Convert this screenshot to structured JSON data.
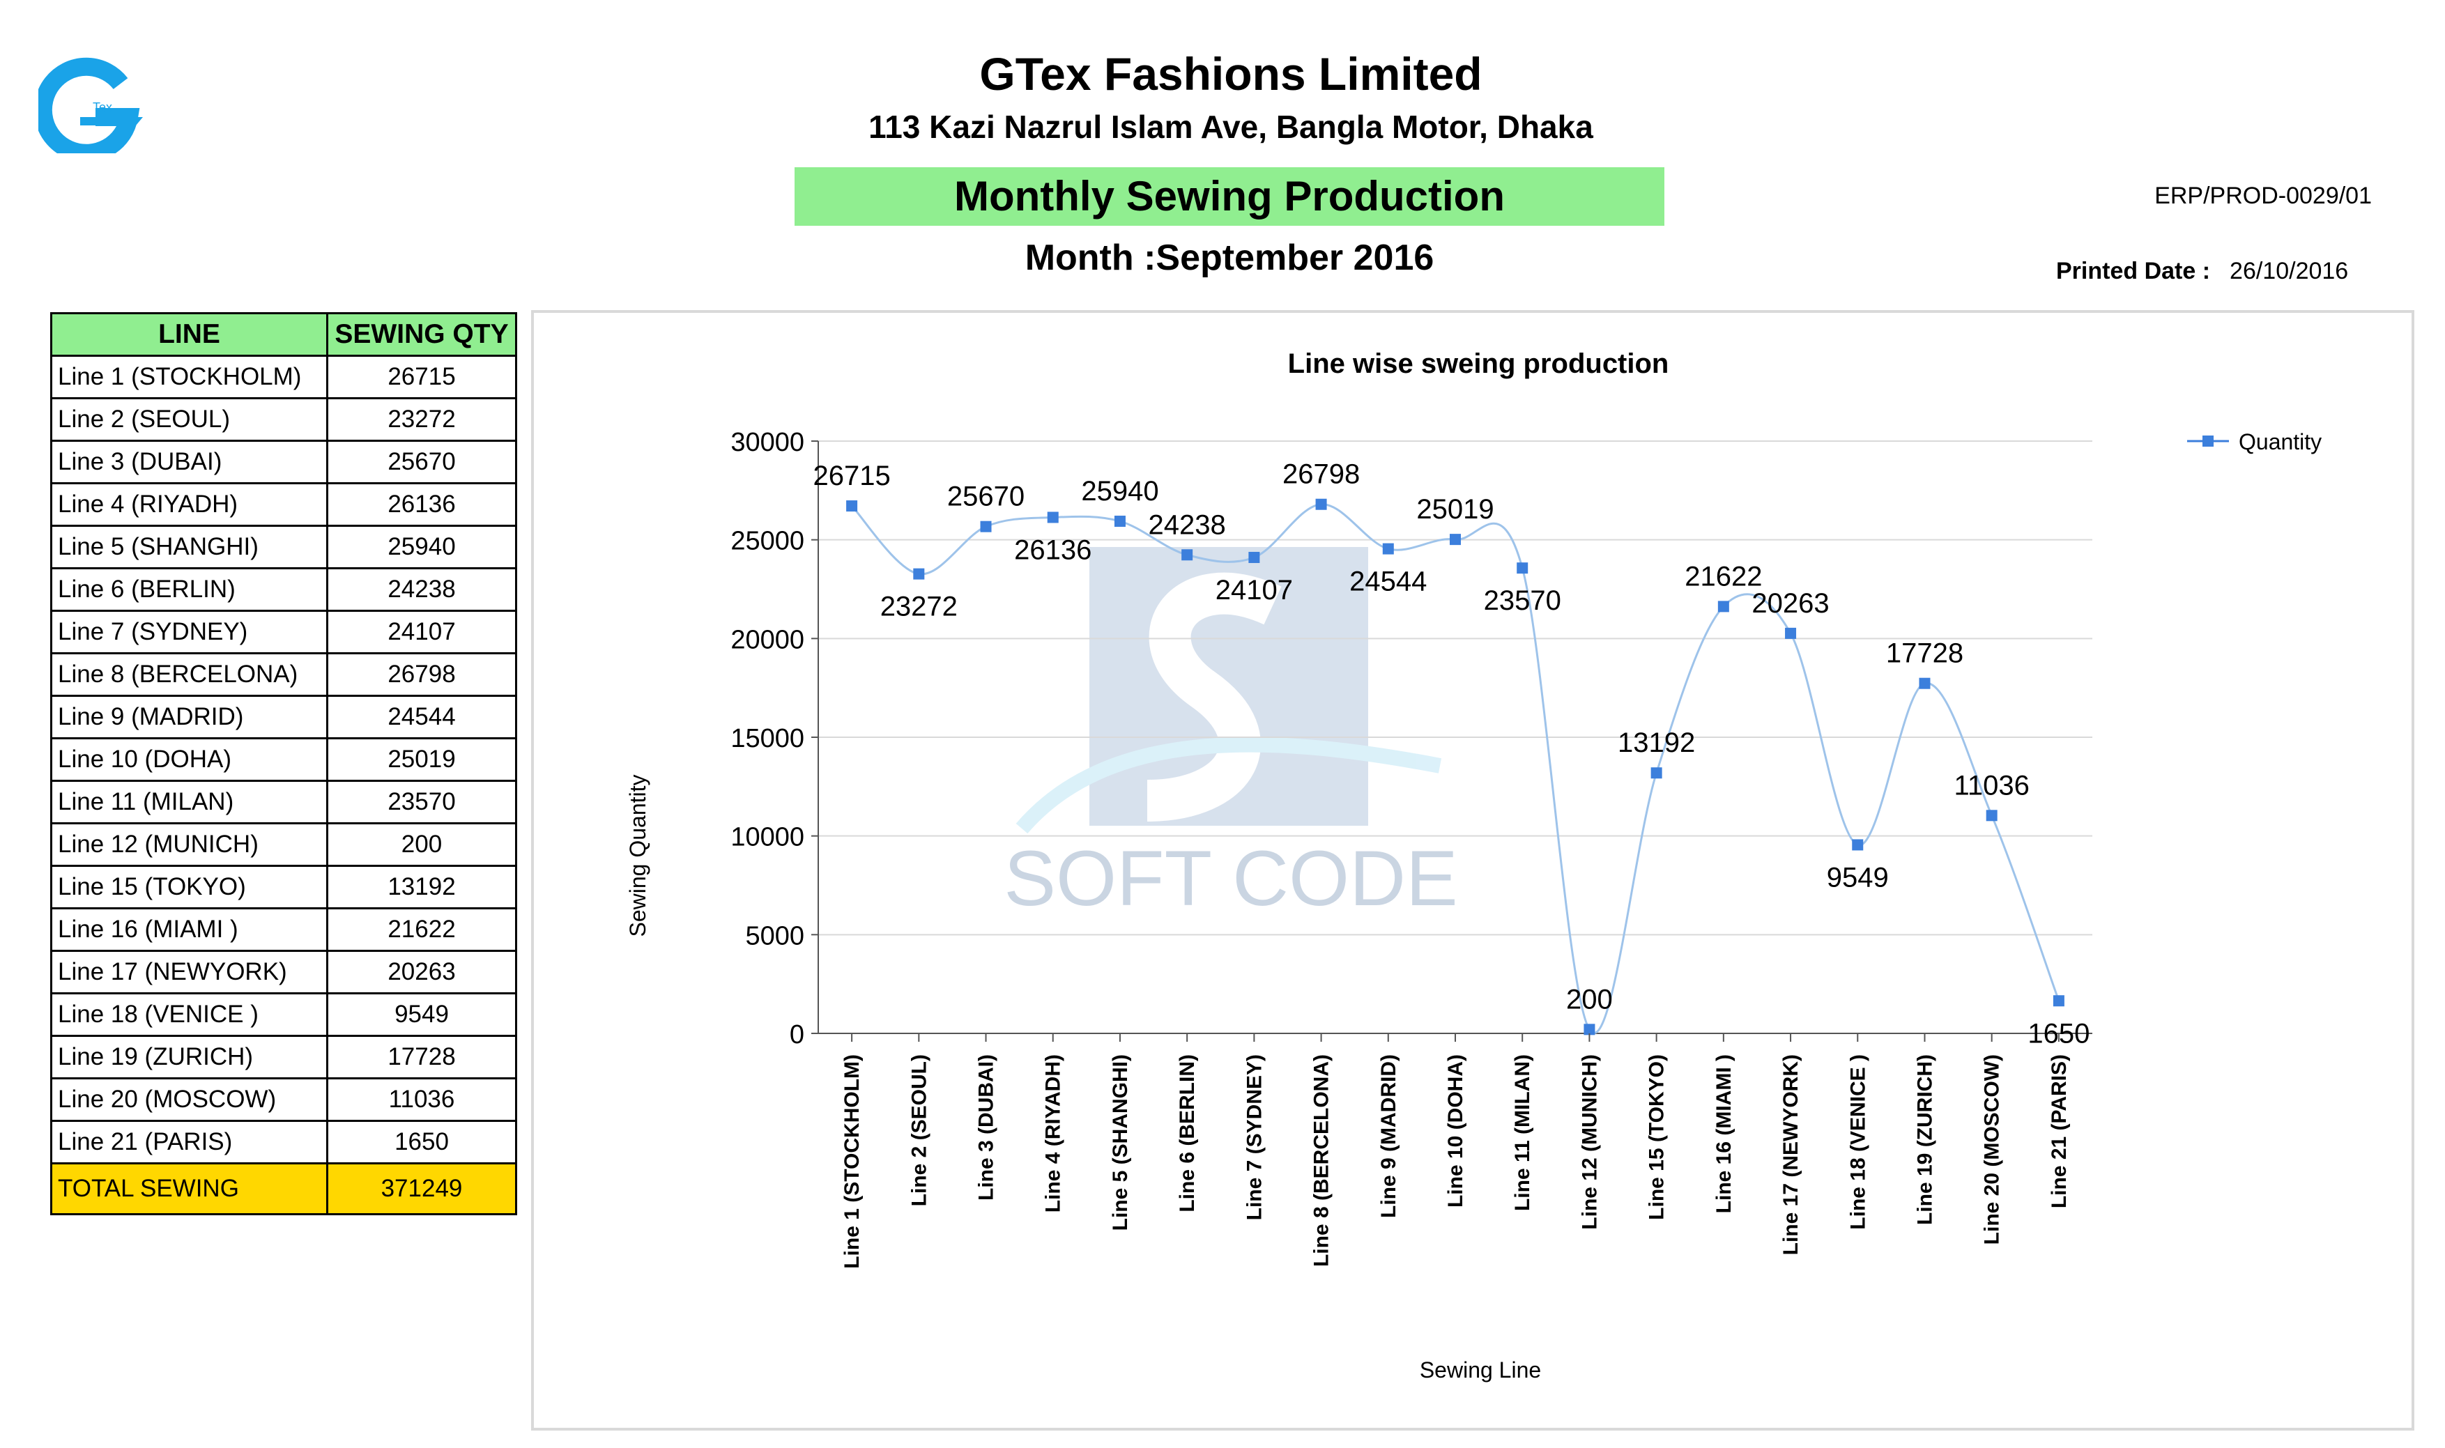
{
  "header": {
    "company_name": "GTex Fashions Limited",
    "address": "113 Kazi Nazrul Islam Ave, Bangla Motor, Dhaka",
    "report_title": "Monthly Sewing Production",
    "month_label": "Month :",
    "month_value": "September 2016",
    "doc_code": "ERP/PROD-0029/01",
    "printed_label": "Printed Date :",
    "printed_value": "26/10/2016",
    "logo_text": "Tex"
  },
  "table": {
    "col_line": "LINE",
    "col_qty": "SEWING QTY",
    "rows": [
      {
        "line": "Line 1 (STOCKHOLM)",
        "qty": "26715"
      },
      {
        "line": "Line 2 (SEOUL)",
        "qty": "23272"
      },
      {
        "line": "Line 3 (DUBAI)",
        "qty": "25670"
      },
      {
        "line": "Line 4 (RIYADH)",
        "qty": "26136"
      },
      {
        "line": "Line 5 (SHANGHI)",
        "qty": "25940"
      },
      {
        "line": "Line 6 (BERLIN)",
        "qty": "24238"
      },
      {
        "line": "Line 7 (SYDNEY)",
        "qty": "24107"
      },
      {
        "line": "Line 8 (BERCELONA)",
        "qty": "26798"
      },
      {
        "line": "Line 9 (MADRID)",
        "qty": "24544"
      },
      {
        "line": "Line 10 (DOHA)",
        "qty": "25019"
      },
      {
        "line": "Line 11 (MILAN)",
        "qty": "23570"
      },
      {
        "line": "Line 12 (MUNICH)",
        "qty": "200"
      },
      {
        "line": "Line 15 (TOKYO)",
        "qty": "13192"
      },
      {
        "line": "Line 16 (MIAMI )",
        "qty": "21622"
      },
      {
        "line": "Line 17 (NEWYORK)",
        "qty": "20263"
      },
      {
        "line": "Line 18 (VENICE )",
        "qty": "9549"
      },
      {
        "line": "Line 19 (ZURICH)",
        "qty": "17728"
      },
      {
        "line": "Line 20 (MOSCOW)",
        "qty": "11036"
      },
      {
        "line": "Line 21 (PARIS)",
        "qty": "1650"
      }
    ],
    "total_label": "TOTAL SEWING",
    "total_value": "371249"
  },
  "colors": {
    "header_green": "#90ee90",
    "total_gold": "#ffd700",
    "series_blue": "#3c7fdc",
    "logo_blue": "#1aa3e8"
  },
  "watermark": {
    "text": "SOFT CODE"
  },
  "chart_data": {
    "type": "line",
    "smooth": true,
    "title": "Line wise sweing production",
    "xlabel": "Sewing Line",
    "ylabel": "Sewing Quantity",
    "ylim": [
      0,
      30000
    ],
    "yticks": [
      0,
      5000,
      10000,
      15000,
      20000,
      25000,
      30000
    ],
    "grid": "horizontal",
    "legend_position": "top-right",
    "categories": [
      "Line 1 (STOCKHOLM)",
      "Line 2 (SEOUL)",
      "Line 3 (DUBAI)",
      "Line 4 (RIYADH)",
      "Line 5 (SHANGHI)",
      "Line 6 (BERLIN)",
      "Line 7 (SYDNEY)",
      "Line 8 (BERCELONA)",
      "Line 9 (MADRID)",
      "Line 10 (DOHA)",
      "Line 11 (MILAN)",
      "Line 12 (MUNICH)",
      "Line 15 (TOKYO)",
      "Line 16 (MIAMI )",
      "Line 17 (NEWYORK)",
      "Line 18 (VENICE )",
      "Line 19 (ZURICH)",
      "Line 20 (MOSCOW)",
      "Line 21 (PARIS)"
    ],
    "series": [
      {
        "name": "Quantity",
        "values": [
          26715,
          23272,
          25670,
          26136,
          25940,
          24238,
          24107,
          26798,
          24544,
          25019,
          23570,
          200,
          13192,
          21622,
          20263,
          9549,
          17728,
          11036,
          1650
        ]
      }
    ],
    "data_label_side": [
      "above",
      "below",
      "above",
      "below",
      "above",
      "above",
      "below",
      "above",
      "below",
      "above",
      "below",
      "above",
      "above",
      "above",
      "above",
      "below",
      "above",
      "above",
      "below"
    ]
  }
}
